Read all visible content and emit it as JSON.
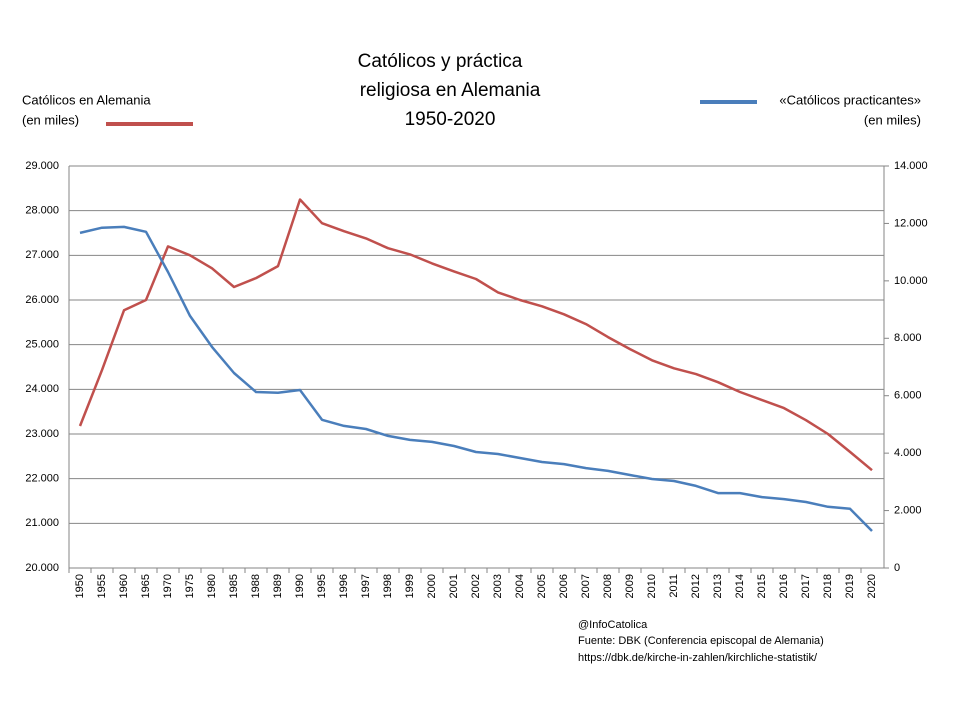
{
  "chart_data": {
    "type": "line",
    "title": [
      "Católicos y práctica",
      "religiosa en Alemania",
      "1950-2020"
    ],
    "y_unit": "(en miles)",
    "y2_unit": "(en miles)",
    "categories": [
      "1950",
      "1955",
      "1960",
      "1965",
      "1970",
      "1975",
      "1980",
      "1985",
      "1988",
      "1989",
      "1990",
      "1995",
      "1996",
      "1997",
      "1998",
      "1999",
      "2000",
      "2001",
      "2002",
      "2003",
      "2004",
      "2005",
      "2006",
      "2007",
      "2008",
      "2009",
      "2010",
      "2011",
      "2012",
      "2013",
      "2014",
      "2015",
      "2016",
      "2017",
      "2018",
      "2019",
      "2020"
    ],
    "series": [
      {
        "name": "Católicos en Alemania",
        "color": "#c0504d",
        "axis": "y",
        "values": [
          23180,
          24430,
          25770,
          26000,
          27200,
          27000,
          26710,
          26290,
          26490,
          26760,
          28250,
          27720,
          27540,
          27380,
          27160,
          27020,
          26820,
          26640,
          26470,
          26170,
          26000,
          25860,
          25680,
          25460,
          25170,
          24900,
          24650,
          24470,
          24340,
          24160,
          23940,
          23760,
          23580,
          23310,
          23000,
          22600,
          22190
        ]
      },
      {
        "name": "«Católicos practicantes»",
        "color": "#4a7ebb",
        "axis": "y2",
        "values": [
          11670,
          11850,
          11880,
          11710,
          10310,
          8780,
          7700,
          6790,
          6130,
          6100,
          6200,
          5160,
          4950,
          4840,
          4600,
          4460,
          4390,
          4250,
          4040,
          3970,
          3830,
          3690,
          3620,
          3480,
          3380,
          3240,
          3100,
          3030,
          2860,
          2610,
          2610,
          2470,
          2400,
          2300,
          2130,
          2060,
          1290
        ]
      }
    ],
    "ylim": [
      20000,
      29000
    ],
    "yticks": [
      {
        "value": 20000,
        "label": "20.000"
      },
      {
        "value": 21000,
        "label": "21.000"
      },
      {
        "value": 22000,
        "label": "22.000"
      },
      {
        "value": 23000,
        "label": "23.000"
      },
      {
        "value": 24000,
        "label": "24.000"
      },
      {
        "value": 25000,
        "label": "25.000"
      },
      {
        "value": 26000,
        "label": "26.000"
      },
      {
        "value": 27000,
        "label": "27.000"
      },
      {
        "value": 28000,
        "label": "28.000"
      },
      {
        "value": 29000,
        "label": "29.000"
      }
    ],
    "y2lim": [
      0,
      14000
    ],
    "y2ticks": [
      0,
      {
        "value": 2000,
        "label": "2.000"
      },
      {
        "value": 4000,
        "label": "4.000"
      },
      {
        "value": 6000,
        "label": "6.000"
      },
      {
        "value": 8000,
        "label": "8.000"
      },
      {
        "value": 10000,
        "label": "10.000"
      },
      {
        "value": 12000,
        "label": "12.000"
      },
      {
        "value": 14000,
        "label": "14.000"
      }
    ],
    "grid": true,
    "notes": [
      "@InfoCatolica",
      "Fuente:  DBK (Conferencia episcopal de Alemania)",
      "https://dbk.de/kirche-in-zahlen/kirchliche-statistik/"
    ]
  }
}
